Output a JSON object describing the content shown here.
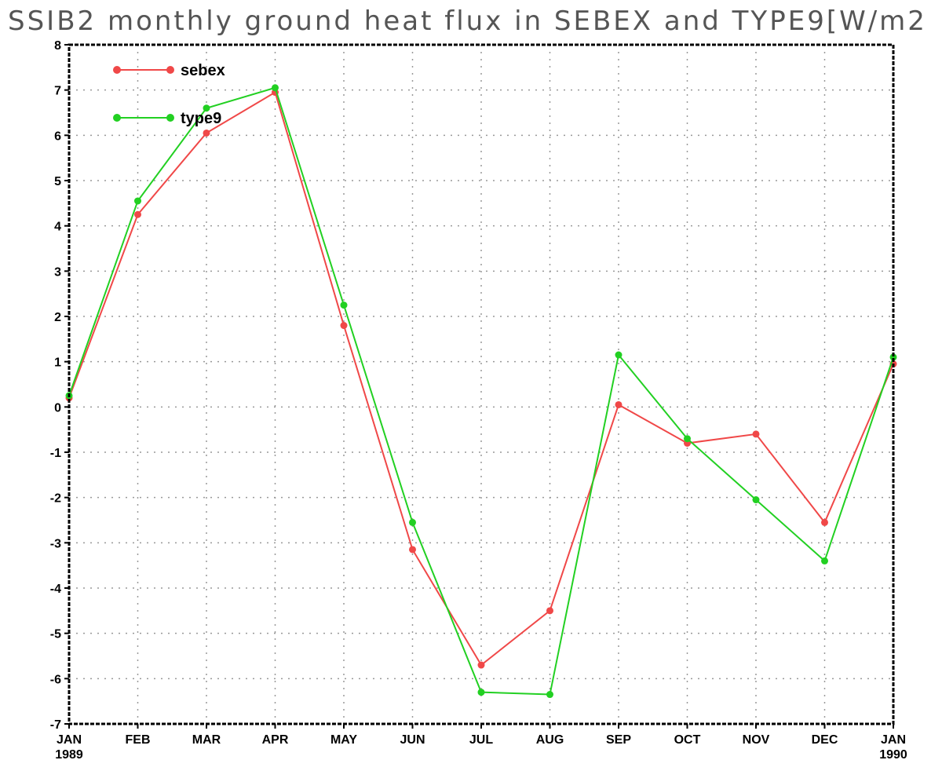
{
  "chart_data": {
    "type": "line",
    "title": "SSIB2 monthly ground heat flux in SEBEX and TYPE9[W/m2",
    "xlabel": "",
    "ylabel": "",
    "x_ticks": [
      {
        "label": "JAN",
        "year": "1989"
      },
      {
        "label": "FEB",
        "year": ""
      },
      {
        "label": "MAR",
        "year": ""
      },
      {
        "label": "APR",
        "year": ""
      },
      {
        "label": "MAY",
        "year": ""
      },
      {
        "label": "JUN",
        "year": ""
      },
      {
        "label": "JUL",
        "year": ""
      },
      {
        "label": "AUG",
        "year": ""
      },
      {
        "label": "SEP",
        "year": ""
      },
      {
        "label": "OCT",
        "year": ""
      },
      {
        "label": "NOV",
        "year": ""
      },
      {
        "label": "DEC",
        "year": ""
      },
      {
        "label": "JAN",
        "year": "1990"
      }
    ],
    "ylim": [
      -7,
      8
    ],
    "y_ticks": [
      "8",
      "7",
      "6",
      "5",
      "4",
      "3",
      "2",
      "1",
      "0",
      "-1",
      "-2",
      "-3",
      "-4",
      "-5",
      "-6",
      "-7"
    ],
    "grid": true,
    "legend_position": "top-left",
    "series": [
      {
        "name": "sebex",
        "color": "#f04848",
        "values": [
          0.2,
          4.25,
          6.05,
          6.95,
          1.8,
          -3.15,
          -5.7,
          -4.5,
          0.05,
          -0.8,
          -0.6,
          -2.55,
          0.95
        ]
      },
      {
        "name": "type9",
        "color": "#22d022",
        "values": [
          0.25,
          4.55,
          6.6,
          7.05,
          2.25,
          -2.55,
          -6.3,
          -6.35,
          1.15,
          -0.7,
          -2.05,
          -3.4,
          1.1
        ]
      }
    ]
  }
}
